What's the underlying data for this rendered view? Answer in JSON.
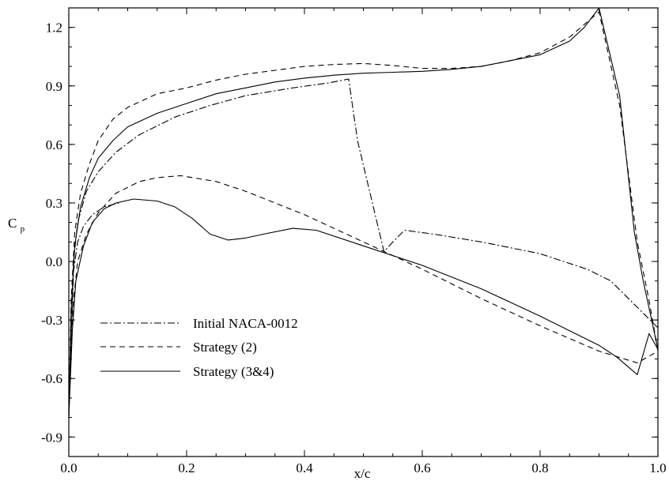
{
  "chart_data": {
    "type": "line",
    "xlabel": "x/c",
    "ylabel": "C",
    "ylabel_sub": "p",
    "xlim": [
      0.0,
      1.0
    ],
    "ylim": [
      -1.0,
      1.3
    ],
    "x_ticks": [
      {
        "value": 0.0,
        "label": "0.0"
      },
      {
        "value": 0.2,
        "label": "0.2"
      },
      {
        "value": 0.4,
        "label": "0.4"
      },
      {
        "value": 0.6,
        "label": "0.6"
      },
      {
        "value": 0.8,
        "label": "0.8"
      },
      {
        "value": 1.0,
        "label": "1.0"
      }
    ],
    "y_ticks": [
      {
        "value": 1.2,
        "label": "1.2"
      },
      {
        "value": 0.9,
        "label": "0.9"
      },
      {
        "value": 0.6,
        "label": "0.6"
      },
      {
        "value": 0.3,
        "label": "0.3"
      },
      {
        "value": 0.0,
        "label": "0.0"
      },
      {
        "value": -0.3,
        "label": "-0.3"
      },
      {
        "value": -0.6,
        "label": "-0.6"
      },
      {
        "value": -0.9,
        "label": "-0.9"
      }
    ],
    "grid": false,
    "legend_position": "lower-left",
    "series": [
      {
        "name": "Initial NACA-0012",
        "style": "dashdot",
        "color": "#000000",
        "points": [
          [
            1.0,
            -0.34
          ],
          [
            0.98,
            -0.28
          ],
          [
            0.96,
            -0.22
          ],
          [
            0.92,
            -0.1
          ],
          [
            0.88,
            -0.04
          ],
          [
            0.8,
            0.04
          ],
          [
            0.7,
            0.1
          ],
          [
            0.62,
            0.14
          ],
          [
            0.57,
            0.16
          ],
          [
            0.55,
            0.1
          ],
          [
            0.535,
            0.05
          ],
          [
            0.49,
            0.62
          ],
          [
            0.475,
            0.935
          ],
          [
            0.44,
            0.915
          ],
          [
            0.38,
            0.89
          ],
          [
            0.3,
            0.85
          ],
          [
            0.24,
            0.8
          ],
          [
            0.18,
            0.74
          ],
          [
            0.12,
            0.65
          ],
          [
            0.08,
            0.56
          ],
          [
            0.05,
            0.46
          ],
          [
            0.03,
            0.36
          ],
          [
            0.015,
            0.2
          ],
          [
            0.008,
            0.0
          ],
          [
            0.004,
            -0.4
          ],
          [
            0.0,
            -0.8
          ],
          [
            0.004,
            -0.4
          ],
          [
            0.008,
            -0.05
          ],
          [
            0.015,
            0.1
          ],
          [
            0.025,
            0.18
          ],
          [
            0.04,
            0.24
          ],
          [
            0.06,
            0.28
          ],
          [
            0.085,
            0.3
          ]
        ]
      },
      {
        "name": "Strategy (2)",
        "style": "dashed",
        "color": "#000000",
        "points": [
          [
            0.0,
            -0.8
          ],
          [
            0.004,
            -0.2
          ],
          [
            0.01,
            0.15
          ],
          [
            0.02,
            0.35
          ],
          [
            0.035,
            0.5
          ],
          [
            0.05,
            0.62
          ],
          [
            0.075,
            0.73
          ],
          [
            0.1,
            0.79
          ],
          [
            0.15,
            0.86
          ],
          [
            0.2,
            0.89
          ],
          [
            0.25,
            0.93
          ],
          [
            0.3,
            0.96
          ],
          [
            0.35,
            0.98
          ],
          [
            0.4,
            1.0
          ],
          [
            0.45,
            1.01
          ],
          [
            0.5,
            1.015
          ],
          [
            0.55,
            1.005
          ],
          [
            0.6,
            0.99
          ],
          [
            0.65,
            0.99
          ],
          [
            0.7,
            1.0
          ],
          [
            0.75,
            1.03
          ],
          [
            0.8,
            1.07
          ],
          [
            0.85,
            1.15
          ],
          [
            0.9,
            1.28
          ],
          [
            0.935,
            0.8
          ],
          [
            0.965,
            0.1
          ],
          [
            0.985,
            -0.2
          ],
          [
            1.0,
            -0.46
          ],
          [
            0.965,
            -0.52
          ],
          [
            0.9,
            -0.46
          ],
          [
            0.8,
            -0.33
          ],
          [
            0.7,
            -0.19
          ],
          [
            0.6,
            -0.04
          ],
          [
            0.5,
            0.1
          ],
          [
            0.4,
            0.24
          ],
          [
            0.3,
            0.36
          ],
          [
            0.25,
            0.41
          ],
          [
            0.19,
            0.44
          ],
          [
            0.15,
            0.43
          ],
          [
            0.12,
            0.41
          ],
          [
            0.08,
            0.35
          ],
          [
            0.05,
            0.25
          ],
          [
            0.03,
            0.14
          ],
          [
            0.015,
            0.0
          ],
          [
            0.008,
            -0.2
          ],
          [
            0.004,
            -0.45
          ],
          [
            0.0,
            -0.8
          ]
        ]
      },
      {
        "name": "Strategy (3&4)",
        "style": "solid",
        "color": "#000000",
        "points": [
          [
            0.0,
            -0.8
          ],
          [
            0.004,
            -0.25
          ],
          [
            0.01,
            0.08
          ],
          [
            0.02,
            0.28
          ],
          [
            0.035,
            0.43
          ],
          [
            0.05,
            0.53
          ],
          [
            0.075,
            0.62
          ],
          [
            0.1,
            0.69
          ],
          [
            0.15,
            0.76
          ],
          [
            0.2,
            0.81
          ],
          [
            0.25,
            0.86
          ],
          [
            0.3,
            0.89
          ],
          [
            0.35,
            0.92
          ],
          [
            0.4,
            0.94
          ],
          [
            0.45,
            0.955
          ],
          [
            0.5,
            0.965
          ],
          [
            0.55,
            0.97
          ],
          [
            0.6,
            0.975
          ],
          [
            0.65,
            0.985
          ],
          [
            0.7,
            1.0
          ],
          [
            0.75,
            1.03
          ],
          [
            0.8,
            1.06
          ],
          [
            0.85,
            1.13
          ],
          [
            0.875,
            1.2
          ],
          [
            0.9,
            1.3
          ],
          [
            0.935,
            0.85
          ],
          [
            0.96,
            0.15
          ],
          [
            0.975,
            -0.1
          ],
          [
            1.0,
            -0.45
          ],
          [
            0.985,
            -0.37
          ],
          [
            0.965,
            -0.58
          ],
          [
            0.93,
            -0.49
          ],
          [
            0.9,
            -0.43
          ],
          [
            0.8,
            -0.28
          ],
          [
            0.7,
            -0.14
          ],
          [
            0.6,
            -0.02
          ],
          [
            0.5,
            0.08
          ],
          [
            0.42,
            0.16
          ],
          [
            0.38,
            0.17
          ],
          [
            0.33,
            0.14
          ],
          [
            0.3,
            0.12
          ],
          [
            0.27,
            0.11
          ],
          [
            0.24,
            0.14
          ],
          [
            0.21,
            0.22
          ],
          [
            0.18,
            0.28
          ],
          [
            0.15,
            0.31
          ],
          [
            0.11,
            0.32
          ],
          [
            0.08,
            0.3
          ],
          [
            0.06,
            0.27
          ],
          [
            0.04,
            0.2
          ],
          [
            0.025,
            0.08
          ],
          [
            0.012,
            -0.1
          ],
          [
            0.006,
            -0.35
          ],
          [
            0.0,
            -0.8
          ]
        ]
      }
    ]
  }
}
